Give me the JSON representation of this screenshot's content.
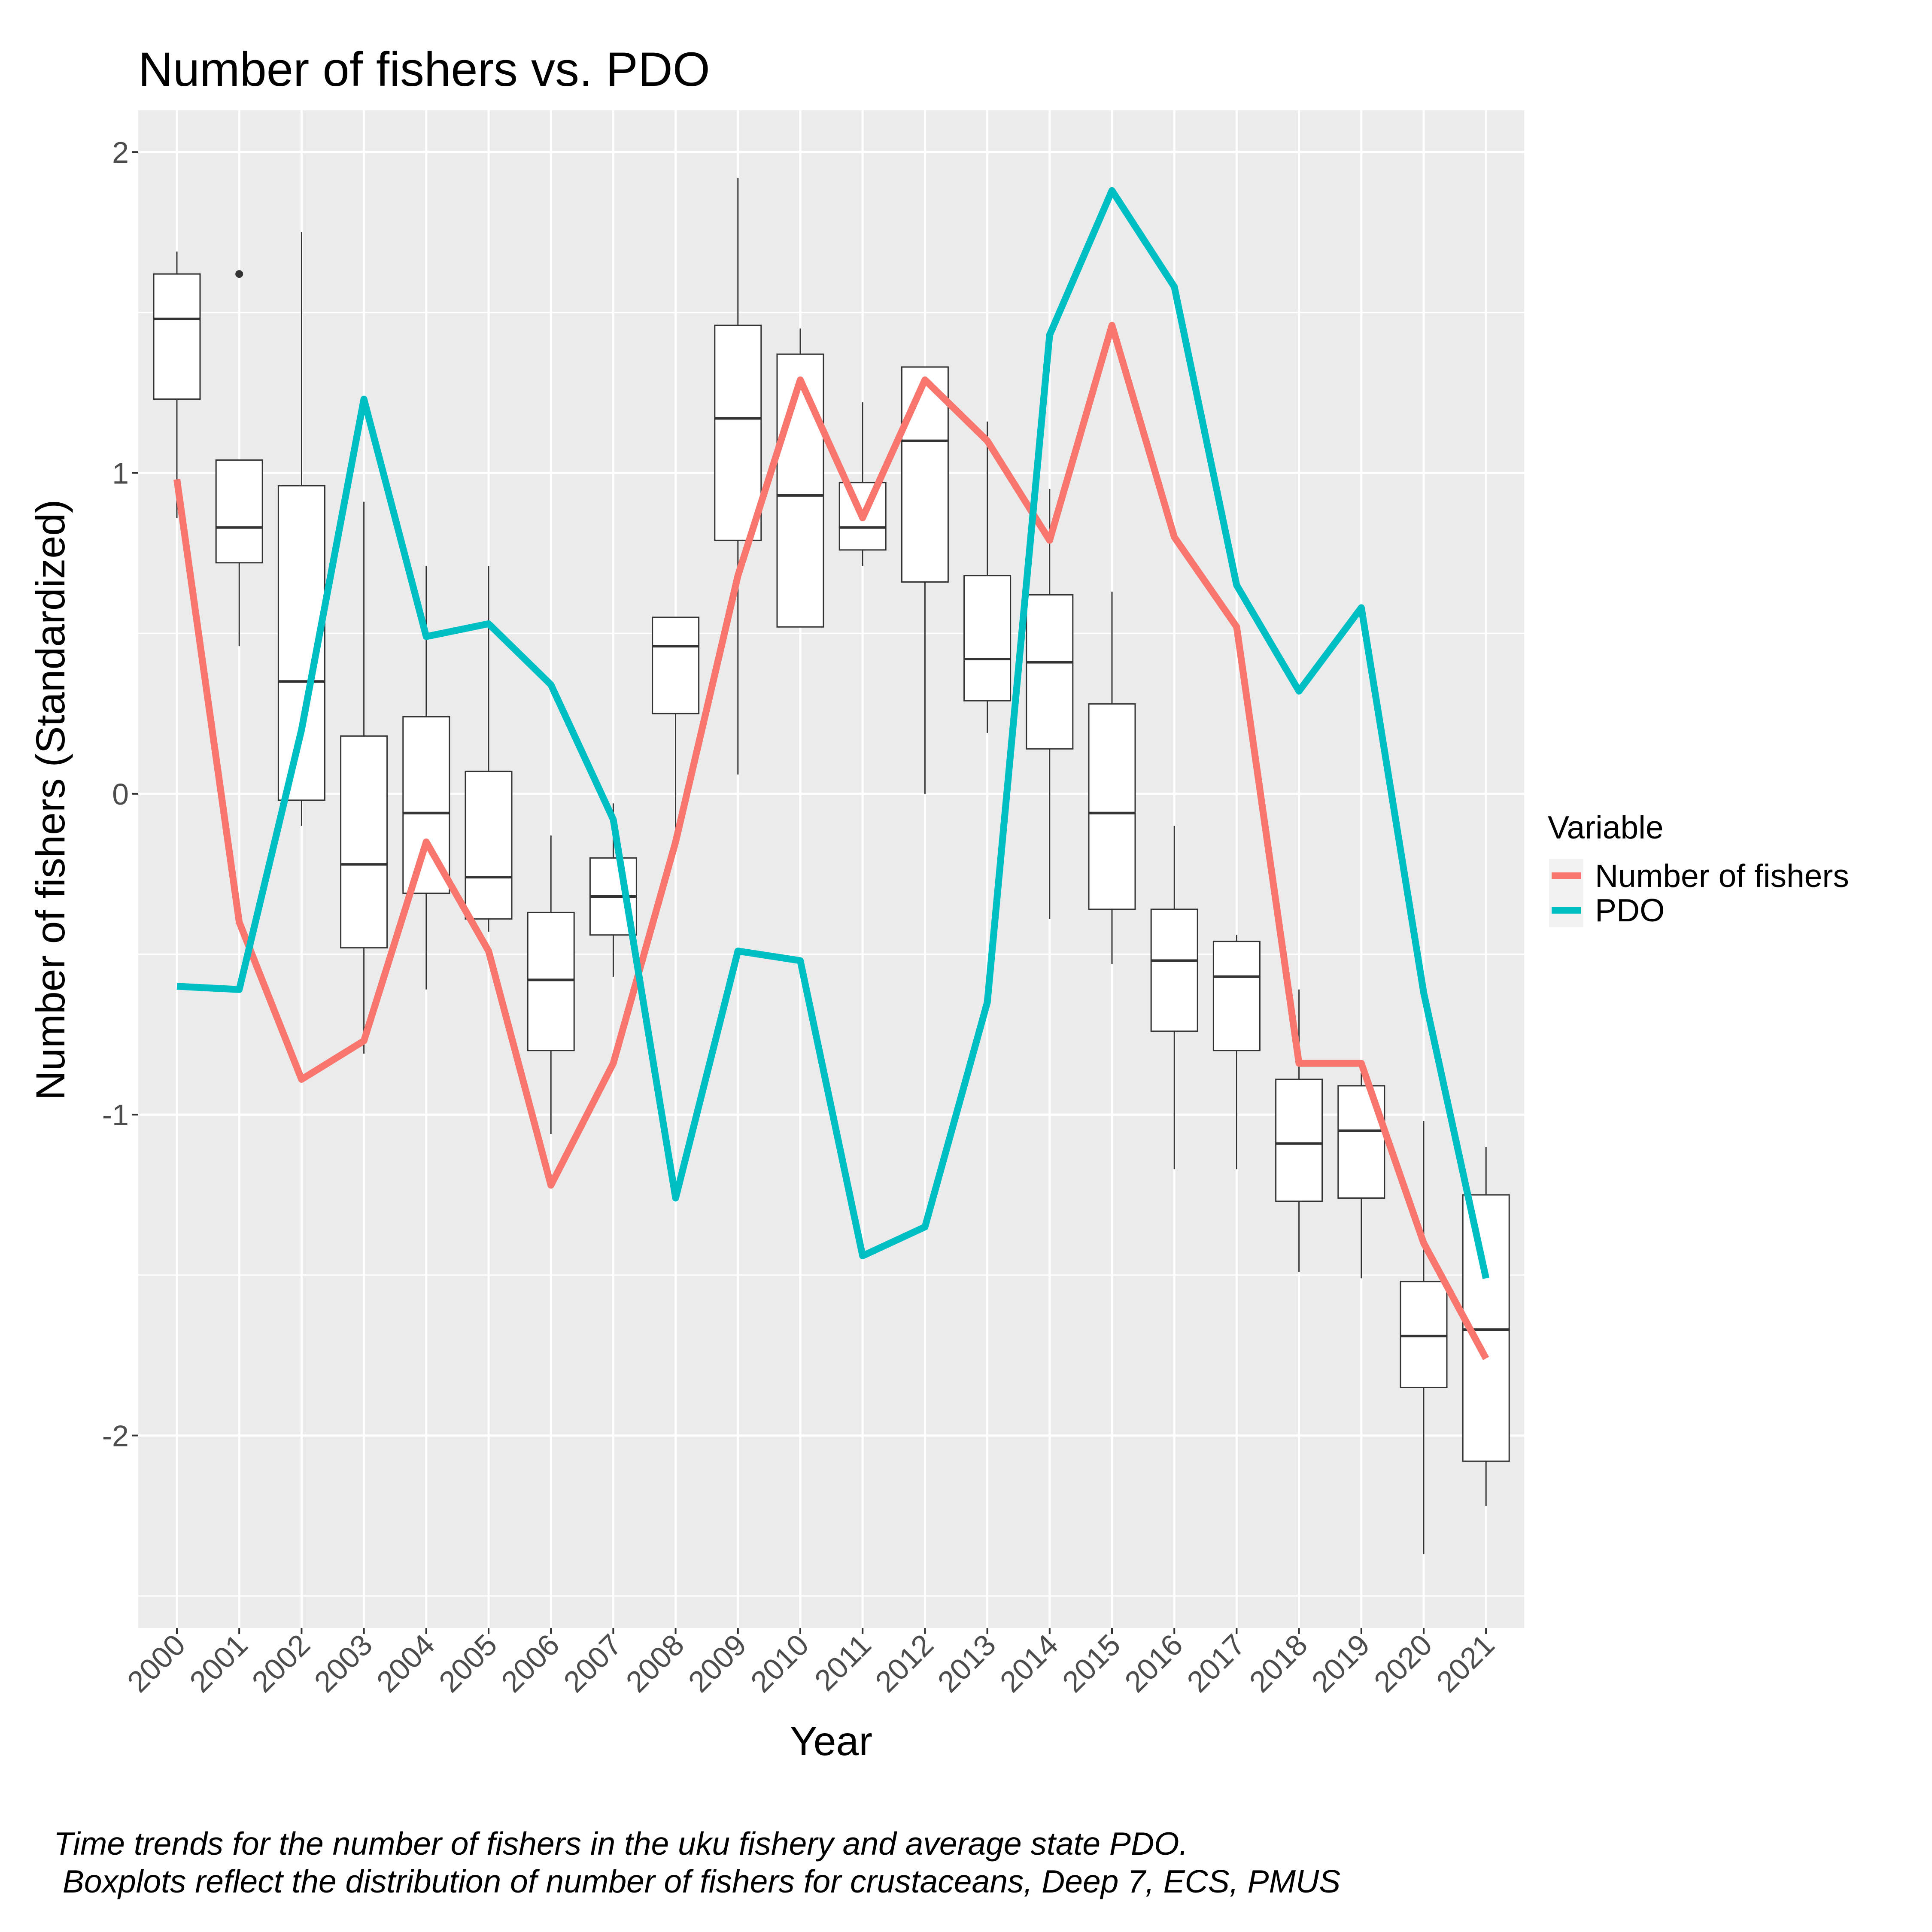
{
  "chart_data": {
    "type": "line",
    "title": "Number of fishers vs. PDO",
    "xlabel": "Year",
    "ylabel": "Number of fishers (Standardized)",
    "ylim": [
      -2.6,
      2.13
    ],
    "yticks": [
      -2,
      -1,
      0,
      1,
      2
    ],
    "grid": true,
    "legend": {
      "title": "Variable",
      "placement": "right",
      "entries": [
        {
          "label": "Number of fishers",
          "color": "#F8766D"
        },
        {
          "label": "PDO",
          "color": "#00BFC4"
        }
      ]
    },
    "categories": [
      "2000",
      "2001",
      "2002",
      "2003",
      "2004",
      "2005",
      "2006",
      "2007",
      "2008",
      "2009",
      "2010",
      "2011",
      "2012",
      "2013",
      "2014",
      "2015",
      "2016",
      "2017",
      "2018",
      "2019",
      "2020",
      "2021"
    ],
    "series": [
      {
        "name": "Number of fishers",
        "color": "#F8766D",
        "values": [
          0.98,
          -0.4,
          -0.89,
          -0.77,
          -0.15,
          -0.49,
          -1.22,
          -0.84,
          -0.15,
          0.68,
          1.29,
          0.86,
          1.29,
          1.1,
          0.79,
          1.46,
          0.8,
          0.52,
          -0.84,
          -0.84,
          -1.4,
          -1.76
        ]
      },
      {
        "name": "PDO",
        "color": "#00BFC4",
        "values": [
          -0.6,
          -0.61,
          0.2,
          1.23,
          0.49,
          0.53,
          0.34,
          -0.08,
          -1.26,
          -0.49,
          -0.52,
          -1.44,
          -1.35,
          -0.65,
          1.43,
          1.88,
          1.58,
          0.65,
          0.32,
          0.58,
          -0.62,
          -1.51
        ]
      }
    ],
    "boxplots": [
      {
        "x": "2000",
        "min": 0.86,
        "q1": 1.23,
        "median": 1.48,
        "q3": 1.62,
        "max": 1.69,
        "outliers": []
      },
      {
        "x": "2001",
        "min": 0.46,
        "q1": 0.72,
        "median": 0.83,
        "q3": 1.04,
        "max": 1.04,
        "outliers": [
          1.62
        ]
      },
      {
        "x": "2002",
        "min": -0.1,
        "q1": -0.02,
        "median": 0.35,
        "q3": 0.96,
        "max": 1.75,
        "outliers": []
      },
      {
        "x": "2003",
        "min": -0.81,
        "q1": -0.48,
        "median": -0.22,
        "q3": 0.18,
        "max": 0.91,
        "outliers": []
      },
      {
        "x": "2004",
        "min": -0.61,
        "q1": -0.31,
        "median": -0.06,
        "q3": 0.24,
        "max": 0.71,
        "outliers": []
      },
      {
        "x": "2005",
        "min": -0.43,
        "q1": -0.39,
        "median": -0.26,
        "q3": 0.07,
        "max": 0.71,
        "outliers": []
      },
      {
        "x": "2006",
        "min": -1.06,
        "q1": -0.8,
        "median": -0.58,
        "q3": -0.37,
        "max": -0.13,
        "outliers": []
      },
      {
        "x": "2007",
        "min": -0.57,
        "q1": -0.44,
        "median": -0.32,
        "q3": -0.2,
        "max": -0.03,
        "outliers": []
      },
      {
        "x": "2008",
        "min": -0.12,
        "q1": 0.25,
        "median": 0.46,
        "q3": 0.55,
        "max": 0.55,
        "outliers": []
      },
      {
        "x": "2009",
        "min": 0.06,
        "q1": 0.79,
        "median": 1.17,
        "q3": 1.46,
        "max": 1.92,
        "outliers": []
      },
      {
        "x": "2010",
        "min": 0.52,
        "q1": 0.52,
        "median": 0.93,
        "q3": 1.37,
        "max": 1.45,
        "outliers": []
      },
      {
        "x": "2011",
        "min": 0.71,
        "q1": 0.76,
        "median": 0.83,
        "q3": 0.97,
        "max": 1.22,
        "outliers": []
      },
      {
        "x": "2012",
        "min": 0.0,
        "q1": 0.66,
        "median": 1.1,
        "q3": 1.33,
        "max": 1.33,
        "outliers": []
      },
      {
        "x": "2013",
        "min": 0.19,
        "q1": 0.29,
        "median": 0.42,
        "q3": 0.68,
        "max": 1.16,
        "outliers": []
      },
      {
        "x": "2014",
        "min": -0.39,
        "q1": 0.14,
        "median": 0.41,
        "q3": 0.62,
        "max": 0.95,
        "outliers": []
      },
      {
        "x": "2015",
        "min": -0.53,
        "q1": -0.36,
        "median": -0.06,
        "q3": 0.28,
        "max": 0.63,
        "outliers": []
      },
      {
        "x": "2016",
        "min": -1.17,
        "q1": -0.74,
        "median": -0.52,
        "q3": -0.36,
        "max": -0.1,
        "outliers": []
      },
      {
        "x": "2017",
        "min": -1.17,
        "q1": -0.8,
        "median": -0.57,
        "q3": -0.46,
        "max": -0.44,
        "outliers": []
      },
      {
        "x": "2018",
        "min": -1.49,
        "q1": -1.27,
        "median": -1.09,
        "q3": -0.89,
        "max": -0.61,
        "outliers": []
      },
      {
        "x": "2019",
        "min": -1.51,
        "q1": -1.26,
        "median": -1.05,
        "q3": -0.91,
        "max": -0.87,
        "outliers": []
      },
      {
        "x": "2020",
        "min": -2.37,
        "q1": -1.85,
        "median": -1.69,
        "q3": -1.52,
        "max": -1.02,
        "outliers": []
      },
      {
        "x": "2021",
        "min": -2.22,
        "q1": -2.08,
        "median": -1.67,
        "q3": -1.25,
        "max": -1.1,
        "outliers": []
      }
    ],
    "caption": [
      "Time trends for the number of fishers in the uku fishery and average state PDO.",
      " Boxplots reflect the distribution of number of fishers for crustaceans, Deep 7, ECS, PMUS"
    ]
  }
}
